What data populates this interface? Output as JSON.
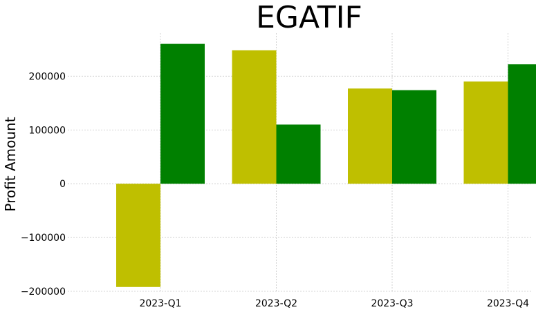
{
  "chart_data": {
    "type": "bar",
    "title": "EGATIF",
    "xlabel": "",
    "ylabel": "Profit Amount",
    "categories": [
      "2023-Q1",
      "2023-Q2",
      "2023-Q3",
      "2023-Q4"
    ],
    "series": [
      {
        "values": [
          -192000,
          248000,
          177000,
          190000
        ],
        "color": "#bfbf00"
      },
      {
        "values": [
          260000,
          110000,
          174000,
          222000
        ],
        "color": "#008000"
      }
    ],
    "ylim": [
      -200000,
      280000
    ],
    "yticks": [
      -200000,
      -100000,
      0,
      100000,
      200000
    ],
    "ytick_labels": [
      "−200000",
      "−100000",
      "0",
      "100000",
      "200000"
    ],
    "grid": true,
    "legend": "none"
  }
}
